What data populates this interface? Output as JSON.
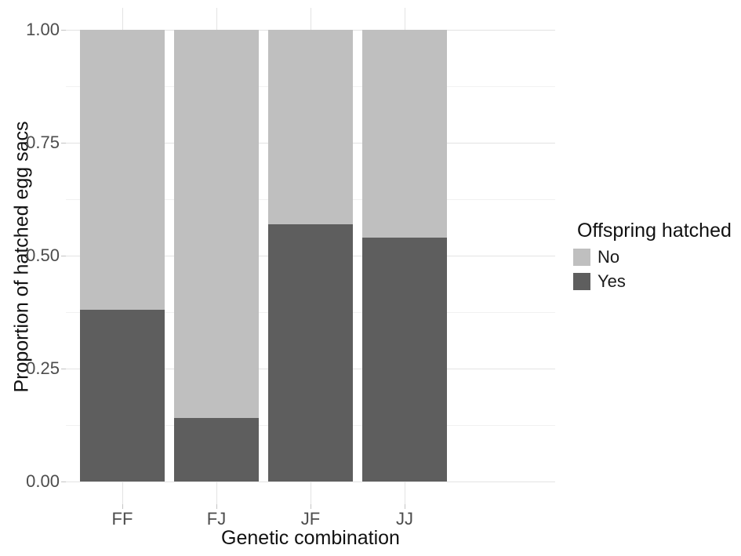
{
  "chart_data": {
    "type": "bar",
    "stacked": true,
    "normalized_fill": true,
    "title": "",
    "xlabel": "Genetic combination",
    "ylabel": "Proportion of hatched egg sacs",
    "categories": [
      "FF",
      "FJ",
      "JF",
      "JJ"
    ],
    "series": [
      {
        "name": "No",
        "color": "#bfbfbf",
        "values": [
          0.62,
          0.86,
          0.43,
          0.46
        ]
      },
      {
        "name": "Yes",
        "color": "#5e5e5e",
        "values": [
          0.38,
          0.14,
          0.57,
          0.54
        ]
      }
    ],
    "stack_order_bottom_to_top": [
      "Yes",
      "No"
    ],
    "ylim": [
      0,
      1
    ],
    "y_ticks": [
      0,
      0.25,
      0.5,
      0.75,
      1
    ],
    "y_tick_labels": [
      "0.00",
      "0.25",
      "0.50",
      "0.75",
      "1.00"
    ],
    "y_minor_ticks": [
      0.125,
      0.375,
      0.625,
      0.875
    ],
    "grid": true,
    "bar_width_fraction": 0.9,
    "legend_position": "right"
  },
  "legend": {
    "title": "Offspring hatched",
    "items": [
      {
        "label": "No",
        "color": "#bfbfbf"
      },
      {
        "label": "Yes",
        "color": "#5e5e5e"
      }
    ]
  },
  "colors": {
    "background": "#ffffff",
    "grid_major": "#e3e3e3",
    "grid_minor": "#f1f1f1",
    "tick_mark": "#c4c4c4",
    "axis_text": "#4d4d4d",
    "title_text": "#111111"
  }
}
